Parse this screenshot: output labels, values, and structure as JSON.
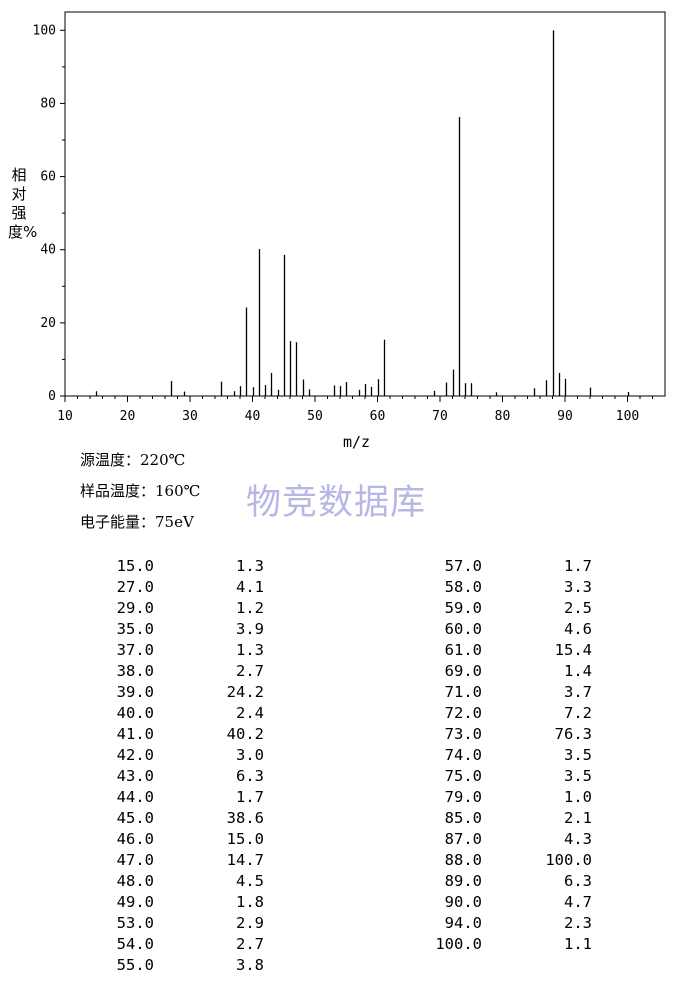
{
  "chart_data": {
    "type": "bar",
    "xlabel": "m/z",
    "ylabel": "相对强度%",
    "xlim": [
      10,
      106
    ],
    "ylim": [
      0,
      105
    ],
    "x_ticks": [
      "10",
      "20",
      "30",
      "40",
      "50",
      "60",
      "70",
      "80",
      "90",
      "100"
    ],
    "y_ticks": [
      "0",
      "20",
      "40",
      "60",
      "80",
      "100"
    ],
    "peaks": [
      {
        "mz": 15.0,
        "intensity": 1.3
      },
      {
        "mz": 27.0,
        "intensity": 4.1
      },
      {
        "mz": 29.0,
        "intensity": 1.2
      },
      {
        "mz": 35.0,
        "intensity": 3.9
      },
      {
        "mz": 37.0,
        "intensity": 1.3
      },
      {
        "mz": 38.0,
        "intensity": 2.7
      },
      {
        "mz": 39.0,
        "intensity": 24.2
      },
      {
        "mz": 40.0,
        "intensity": 2.4
      },
      {
        "mz": 41.0,
        "intensity": 40.2
      },
      {
        "mz": 42.0,
        "intensity": 3.0
      },
      {
        "mz": 43.0,
        "intensity": 6.3
      },
      {
        "mz": 44.0,
        "intensity": 1.7
      },
      {
        "mz": 45.0,
        "intensity": 38.6
      },
      {
        "mz": 46.0,
        "intensity": 15.0
      },
      {
        "mz": 47.0,
        "intensity": 14.7
      },
      {
        "mz": 48.0,
        "intensity": 4.5
      },
      {
        "mz": 49.0,
        "intensity": 1.8
      },
      {
        "mz": 53.0,
        "intensity": 2.9
      },
      {
        "mz": 54.0,
        "intensity": 2.7
      },
      {
        "mz": 55.0,
        "intensity": 3.8
      },
      {
        "mz": 57.0,
        "intensity": 1.7
      },
      {
        "mz": 58.0,
        "intensity": 3.3
      },
      {
        "mz": 59.0,
        "intensity": 2.5
      },
      {
        "mz": 60.0,
        "intensity": 4.6
      },
      {
        "mz": 61.0,
        "intensity": 15.4
      },
      {
        "mz": 69.0,
        "intensity": 1.4
      },
      {
        "mz": 71.0,
        "intensity": 3.7
      },
      {
        "mz": 72.0,
        "intensity": 7.2
      },
      {
        "mz": 73.0,
        "intensity": 76.3
      },
      {
        "mz": 74.0,
        "intensity": 3.5
      },
      {
        "mz": 75.0,
        "intensity": 3.5
      },
      {
        "mz": 79.0,
        "intensity": 1.0
      },
      {
        "mz": 85.0,
        "intensity": 2.1
      },
      {
        "mz": 87.0,
        "intensity": 4.3
      },
      {
        "mz": 88.0,
        "intensity": 100.0
      },
      {
        "mz": 89.0,
        "intensity": 6.3
      },
      {
        "mz": 90.0,
        "intensity": 4.7
      },
      {
        "mz": 94.0,
        "intensity": 2.3
      },
      {
        "mz": 100.0,
        "intensity": 1.1
      }
    ]
  },
  "conditions": {
    "source_temp_label": "源温度：",
    "source_temp_value": "220℃",
    "sample_temp_label": "样品温度：",
    "sample_temp_value": "160℃",
    "electron_energy_label": "电子能量：",
    "electron_energy_value": "75eV"
  },
  "watermark": "物竞数据库",
  "peak_table": {
    "left": [
      {
        "mz": "15.0",
        "int": "1.3"
      },
      {
        "mz": "27.0",
        "int": "4.1"
      },
      {
        "mz": "29.0",
        "int": "1.2"
      },
      {
        "mz": "35.0",
        "int": "3.9"
      },
      {
        "mz": "37.0",
        "int": "1.3"
      },
      {
        "mz": "38.0",
        "int": "2.7"
      },
      {
        "mz": "39.0",
        "int": "24.2"
      },
      {
        "mz": "40.0",
        "int": "2.4"
      },
      {
        "mz": "41.0",
        "int": "40.2"
      },
      {
        "mz": "42.0",
        "int": "3.0"
      },
      {
        "mz": "43.0",
        "int": "6.3"
      },
      {
        "mz": "44.0",
        "int": "1.7"
      },
      {
        "mz": "45.0",
        "int": "38.6"
      },
      {
        "mz": "46.0",
        "int": "15.0"
      },
      {
        "mz": "47.0",
        "int": "14.7"
      },
      {
        "mz": "48.0",
        "int": "4.5"
      },
      {
        "mz": "49.0",
        "int": "1.8"
      },
      {
        "mz": "53.0",
        "int": "2.9"
      },
      {
        "mz": "54.0",
        "int": "2.7"
      },
      {
        "mz": "55.0",
        "int": "3.8"
      }
    ],
    "right": [
      {
        "mz": "57.0",
        "int": "1.7"
      },
      {
        "mz": "58.0",
        "int": "3.3"
      },
      {
        "mz": "59.0",
        "int": "2.5"
      },
      {
        "mz": "60.0",
        "int": "4.6"
      },
      {
        "mz": "61.0",
        "int": "15.4"
      },
      {
        "mz": "69.0",
        "int": "1.4"
      },
      {
        "mz": "71.0",
        "int": "3.7"
      },
      {
        "mz": "72.0",
        "int": "7.2"
      },
      {
        "mz": "73.0",
        "int": "76.3"
      },
      {
        "mz": "74.0",
        "int": "3.5"
      },
      {
        "mz": "75.0",
        "int": "3.5"
      },
      {
        "mz": "79.0",
        "int": "1.0"
      },
      {
        "mz": "85.0",
        "int": "2.1"
      },
      {
        "mz": "87.0",
        "int": "4.3"
      },
      {
        "mz": "88.0",
        "int": "100.0"
      },
      {
        "mz": "89.0",
        "int": "6.3"
      },
      {
        "mz": "90.0",
        "int": "4.7"
      },
      {
        "mz": "94.0",
        "int": "2.3"
      },
      {
        "mz": "100.0",
        "int": "1.1"
      }
    ]
  }
}
